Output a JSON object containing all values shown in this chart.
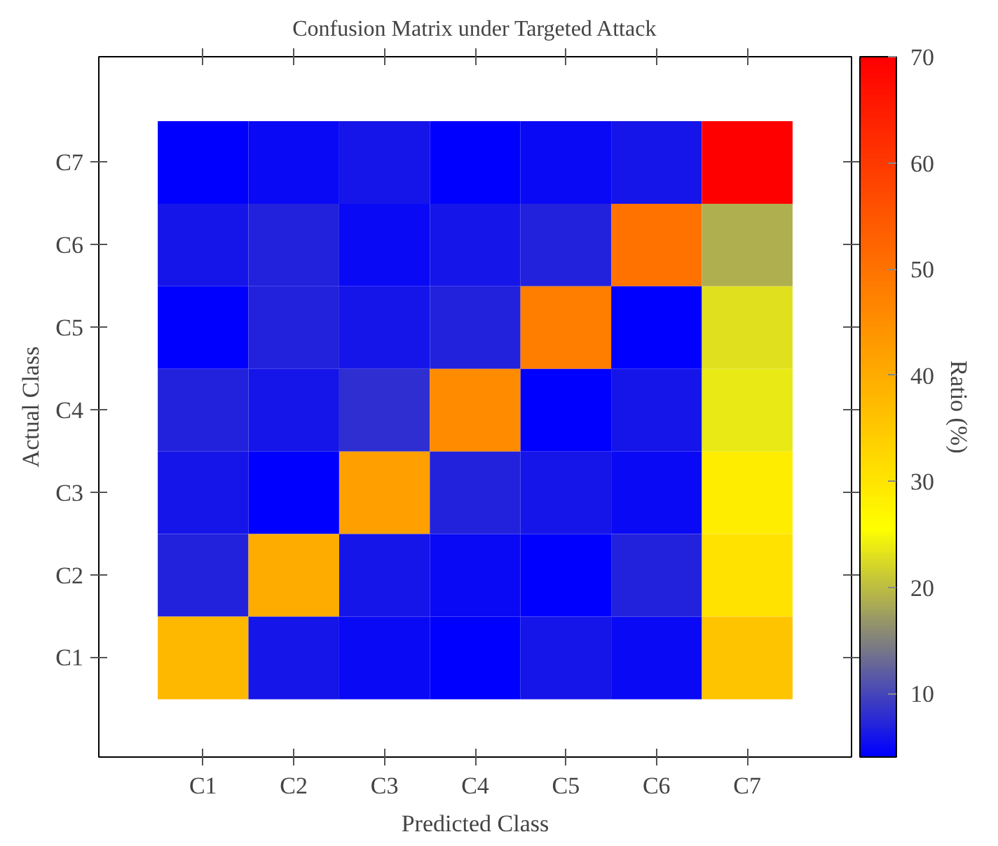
{
  "chart_data": {
    "type": "heatmap",
    "title": "Confusion Matrix under Targeted Attack",
    "xlabel": "Predicted Class",
    "ylabel": "Actual Class",
    "clabel": "Ratio (%)",
    "categories": [
      "C1",
      "C2",
      "C3",
      "C4",
      "C5",
      "C6",
      "C7"
    ],
    "y_categories": [
      "C7",
      "C6",
      "C5",
      "C4",
      "C3",
      "C2",
      "C1"
    ],
    "cells": [
      [
        4,
        5,
        6,
        4,
        5,
        6,
        70
      ],
      [
        6,
        7,
        5,
        6,
        7,
        50,
        18.7
      ],
      [
        4,
        7,
        6,
        7,
        48,
        4,
        22.9
      ],
      [
        7,
        6,
        8,
        45.6,
        4,
        6,
        23.6
      ],
      [
        6,
        4,
        42,
        7,
        6,
        5,
        28.5
      ],
      [
        7,
        40,
        6,
        5,
        4,
        7,
        30.7
      ],
      [
        38,
        6,
        5,
        4,
        6,
        5,
        35.8
      ]
    ],
    "clim": [
      4,
      70
    ],
    "cticks": [
      10,
      20,
      30,
      40,
      50,
      60,
      70
    ],
    "grid": false
  }
}
